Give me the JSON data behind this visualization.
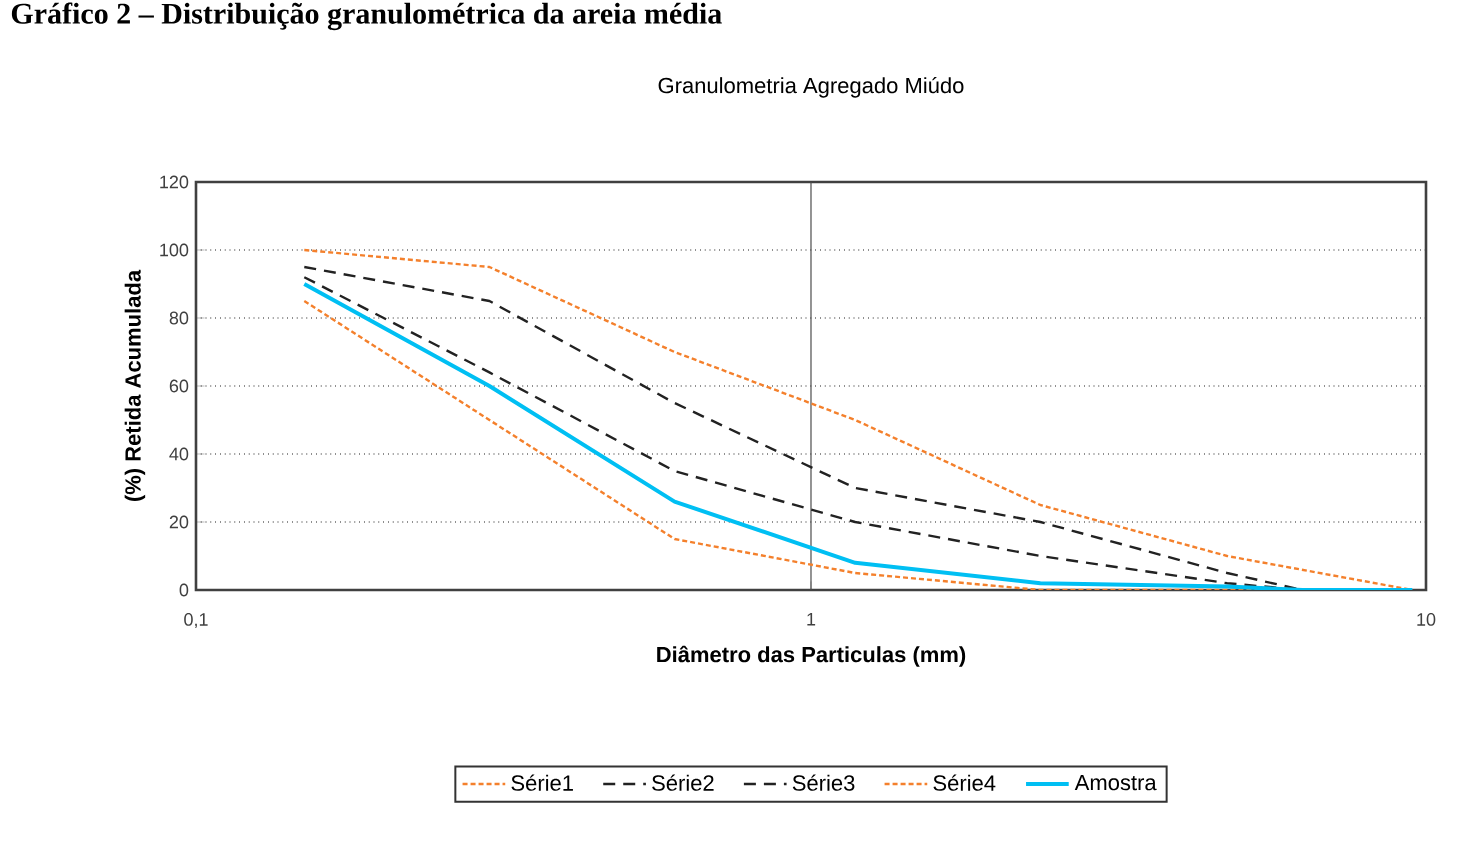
{
  "chart_data": {
    "type": "line",
    "annotations": [
      "Gráfico 2 – Distribuição granulométrica da areia média"
    ],
    "title": "Granulometria Agregado Miúdo",
    "xlabel": "Diâmetro das Particulas (mm)",
    "ylabel": "(%) Retida Acumulada",
    "log": "x",
    "xlim": [
      0.1,
      10
    ],
    "xticks": [
      {
        "value": 0.1,
        "label": "0,1"
      },
      1,
      10
    ],
    "ylim": [
      0,
      120
    ],
    "yticks": [
      0,
      20,
      40,
      60,
      80,
      100,
      120
    ],
    "grid": "y",
    "ref_lines": [
      {
        "axis": "x",
        "value": 1,
        "color": "#4c4c4c",
        "line_style": "solid"
      }
    ],
    "legend": "bottom",
    "marker": "none",
    "series": [
      {
        "name": "Série1",
        "color": "#f4802c",
        "line_style": "dotted",
        "x": [
          0.15,
          0.3,
          0.6,
          1.18,
          2.36,
          4.75,
          9.5
        ],
        "values": [
          85,
          50,
          15,
          5,
          0,
          0,
          0
        ]
      },
      {
        "name": "Série2",
        "color": "#222222",
        "line_style": "dashed",
        "x": [
          0.15,
          0.3,
          0.6,
          1.18,
          2.36,
          4.75,
          6.3
        ],
        "values": [
          95,
          85,
          55,
          30,
          20,
          5,
          0
        ]
      },
      {
        "name": "Série3",
        "color": "#222222",
        "line_style": "dashed",
        "x": [
          0.15,
          0.3,
          0.6,
          1.18,
          2.36,
          4.75,
          6.3
        ],
        "values": [
          92,
          64,
          35,
          20,
          10,
          2,
          0
        ]
      },
      {
        "name": "Série4",
        "color": "#f4802c",
        "line_style": "dotted",
        "x": [
          0.15,
          0.3,
          0.6,
          1.18,
          2.36,
          4.75,
          9.5
        ],
        "values": [
          100,
          95,
          70,
          50,
          25,
          10,
          0
        ]
      },
      {
        "name": "Amostra",
        "color": "#00bff3",
        "line_style": "solid",
        "x": [
          0.15,
          0.3,
          0.6,
          1.18,
          2.36,
          4.75,
          6.3,
          9.5
        ],
        "values": [
          90,
          60,
          26,
          8,
          2,
          1,
          0,
          0
        ]
      }
    ]
  }
}
